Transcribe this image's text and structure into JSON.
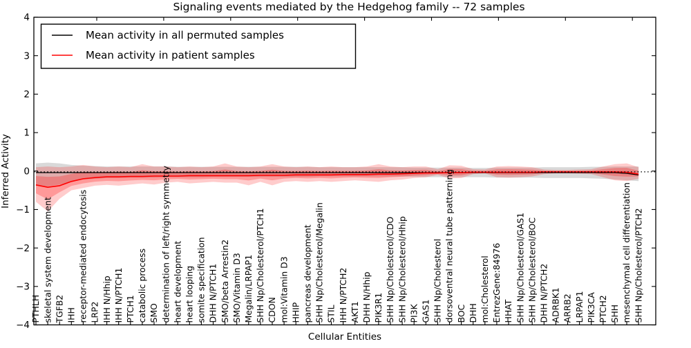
{
  "chart_data": {
    "type": "line",
    "title": "Signaling events mediated by the Hedgehog family -- 72 samples",
    "xlabel": "Cellular Entities",
    "ylabel": "Inferred Activity",
    "ylim": [
      -4,
      4
    ],
    "yticks": [
      4,
      3,
      2,
      1,
      0,
      -1,
      -2,
      -3,
      -4
    ],
    "grid": false,
    "legend": {
      "position": "upper left",
      "entries": [
        {
          "label": "Mean activity in all permuted samples",
          "color": "#000000"
        },
        {
          "label": "Mean activity in patient samples",
          "color": "#ff0000"
        }
      ]
    },
    "categories": [
      "PTHLH",
      "skeletal system development",
      "TGFB2",
      "IHH",
      "receptor-mediated endocytosis",
      "LRP2",
      "IHH N/Hhip",
      "IHH N/PTCH1",
      "PTCH1",
      "catabolic process",
      "SMO",
      "determination of left/right symmetry",
      "heart development",
      "heart looping",
      "somite specification",
      "DHH N/PTCH1",
      "SMO/beta Arrestin2",
      "SMO/Vitamin D3",
      "Megalin/LRPAP1",
      "SHH Np/Cholesterol/PTCH1",
      "CDON",
      "mol:Vitamin D3",
      "HHIP",
      "pancreas development",
      "SHH Np/Cholesterol/Megalin",
      "STIL",
      "IHH N/PTCH2",
      "AKT1",
      "DHH N/Hhip",
      "PIK3R1",
      "SHH Np/Cholesterol/CDO",
      "SHH Np/Cholesterol/Hhip",
      "PI3K",
      "GAS1",
      "SHH Np/Cholesterol",
      "dorsoventral neural tube patterning",
      "BOC",
      "DHH",
      "mol:Cholesterol",
      "EntrezGene:84976",
      "HHAT",
      "SHH Np/Cholesterol/GAS1",
      "SHH Np/Cholesterol/BOC",
      "DHH N/PTCH2",
      "ADRBK1",
      "ARRB2",
      "LRPAP1",
      "PIK3CA",
      "PTCH2",
      "SHH",
      "mesenchymal cell differentiation",
      "SHH Np/Cholesterol/PTCH2"
    ],
    "series": [
      {
        "name": "Mean activity in all permuted samples",
        "color": "#000000",
        "linestyle": "solid",
        "values": [
          -0.04,
          -0.04,
          -0.04,
          -0.04,
          -0.04,
          -0.04,
          -0.04,
          -0.04,
          -0.04,
          -0.04,
          -0.04,
          -0.04,
          -0.04,
          -0.04,
          -0.04,
          -0.04,
          -0.04,
          -0.04,
          -0.04,
          -0.04,
          -0.04,
          -0.04,
          -0.04,
          -0.04,
          -0.04,
          -0.04,
          -0.04,
          -0.04,
          -0.04,
          -0.04,
          -0.04,
          -0.04,
          -0.04,
          -0.04,
          -0.04,
          -0.04,
          -0.04,
          -0.04,
          -0.04,
          -0.04,
          -0.04,
          -0.04,
          -0.04,
          -0.04,
          -0.04,
          -0.04,
          -0.04,
          -0.04,
          -0.04,
          -0.04,
          -0.06,
          -0.1
        ]
      },
      {
        "name": "Mean activity in patient samples",
        "color": "#ff0000",
        "linestyle": "solid",
        "values": [
          -0.36,
          -0.42,
          -0.38,
          -0.27,
          -0.2,
          -0.17,
          -0.15,
          -0.15,
          -0.14,
          -0.14,
          -0.13,
          -0.13,
          -0.13,
          -0.12,
          -0.12,
          -0.12,
          -0.12,
          -0.12,
          -0.12,
          -0.11,
          -0.11,
          -0.11,
          -0.1,
          -0.1,
          -0.1,
          -0.1,
          -0.09,
          -0.09,
          -0.09,
          -0.08,
          -0.08,
          -0.07,
          -0.06,
          -0.05,
          -0.05,
          -0.04,
          -0.04,
          -0.03,
          -0.03,
          -0.03,
          -0.03,
          -0.03,
          -0.03,
          -0.02,
          -0.02,
          -0.02,
          -0.02,
          -0.02,
          -0.02,
          -0.02,
          -0.03,
          -0.08
        ]
      },
      {
        "name": "zero baseline",
        "color": "#000000",
        "linestyle": "dotted",
        "constant": -0.02
      }
    ],
    "bands": [
      {
        "name": "permuted samples range",
        "color": "rgba(128,128,128,0.30)",
        "upper": [
          0.2,
          0.22,
          0.2,
          0.16,
          0.14,
          0.13,
          0.12,
          0.12,
          0.12,
          0.12,
          0.12,
          0.12,
          0.11,
          0.11,
          0.11,
          0.11,
          0.11,
          0.11,
          0.11,
          0.11,
          0.11,
          0.11,
          0.11,
          0.11,
          0.1,
          0.1,
          0.1,
          0.1,
          0.1,
          0.1,
          0.1,
          0.1,
          0.09,
          0.09,
          0.09,
          0.09,
          0.09,
          0.08,
          0.08,
          0.09,
          0.09,
          0.09,
          0.09,
          0.1,
          0.1,
          0.1,
          0.1,
          0.11,
          0.11,
          0.12,
          0.12,
          0.12
        ],
        "lower": [
          -0.38,
          -0.4,
          -0.35,
          -0.28,
          -0.22,
          -0.2,
          -0.18,
          -0.18,
          -0.17,
          -0.17,
          -0.17,
          -0.16,
          -0.16,
          -0.16,
          -0.16,
          -0.15,
          -0.15,
          -0.15,
          -0.15,
          -0.15,
          -0.15,
          -0.15,
          -0.15,
          -0.15,
          -0.14,
          -0.14,
          -0.14,
          -0.14,
          -0.14,
          -0.14,
          -0.14,
          -0.14,
          -0.15,
          -0.16,
          -0.16,
          -0.16,
          -0.16,
          -0.16,
          -0.16,
          -0.17,
          -0.17,
          -0.17,
          -0.17,
          -0.18,
          -0.18,
          -0.18,
          -0.18,
          -0.19,
          -0.2,
          -0.22,
          -0.24,
          -0.26
        ]
      },
      {
        "name": "patient samples range",
        "color": "rgba(255,0,0,0.20)",
        "inner_scale": 0.5,
        "inner_color": "rgba(255,0,0,0.25)",
        "upper": [
          0.1,
          0.12,
          0.1,
          0.12,
          0.16,
          0.12,
          0.1,
          0.12,
          0.1,
          0.18,
          0.12,
          0.12,
          0.1,
          0.12,
          0.1,
          0.12,
          0.2,
          0.12,
          0.1,
          0.12,
          0.18,
          0.12,
          0.1,
          0.12,
          0.1,
          0.12,
          0.1,
          0.1,
          0.12,
          0.18,
          0.12,
          0.1,
          0.12,
          0.12,
          0.05,
          0.15,
          0.14,
          0.05,
          0.04,
          0.12,
          0.13,
          0.12,
          0.1,
          0.04,
          0.03,
          0.03,
          0.04,
          0.05,
          0.12,
          0.18,
          0.2,
          0.1
        ],
        "lower": [
          -0.8,
          -1.05,
          -0.72,
          -0.5,
          -0.44,
          -0.38,
          -0.36,
          -0.38,
          -0.35,
          -0.32,
          -0.35,
          -0.3,
          -0.28,
          -0.32,
          -0.3,
          -0.28,
          -0.3,
          -0.3,
          -0.37,
          -0.28,
          -0.37,
          -0.28,
          -0.26,
          -0.28,
          -0.26,
          -0.28,
          -0.26,
          -0.24,
          -0.26,
          -0.28,
          -0.24,
          -0.22,
          -0.18,
          -0.16,
          -0.1,
          -0.19,
          -0.18,
          -0.08,
          -0.06,
          -0.16,
          -0.17,
          -0.16,
          -0.14,
          -0.08,
          -0.06,
          -0.06,
          -0.07,
          -0.08,
          -0.16,
          -0.24,
          -0.26,
          -0.2
        ]
      }
    ]
  }
}
